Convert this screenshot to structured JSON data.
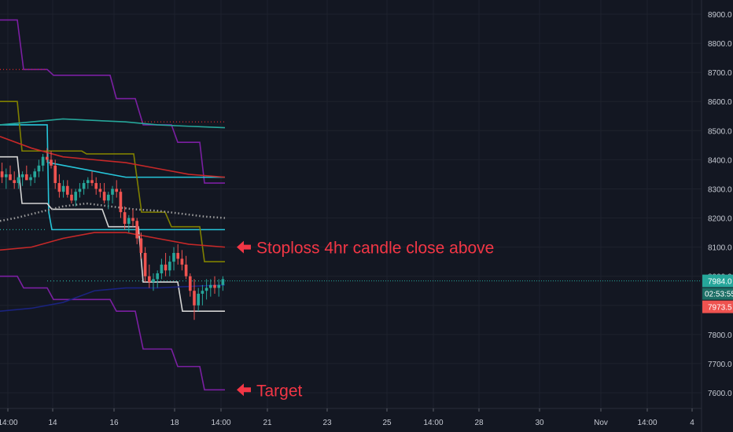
{
  "chart_data": {
    "type": "candlestick",
    "price_axis": {
      "ticks": [
        7600,
        7700,
        7800,
        7900,
        8000,
        8100,
        8200,
        8300,
        8400,
        8500,
        8600,
        8700,
        8800,
        8900
      ],
      "tick_labels": [
        "7600.0",
        "7700.0",
        "7800.0",
        "7900.0",
        "8000.0",
        "8100.0",
        "8200.0",
        "8300.0",
        "8400.0",
        "8500.0",
        "8600.0",
        "8700.0",
        "8800.0",
        "8900.0"
      ],
      "ylim": [
        7535,
        8950
      ]
    },
    "time_axis": {
      "tick_labels": [
        "14:00",
        "14",
        "16",
        "18",
        "14:00",
        "21",
        "23",
        "25",
        "14:00",
        "28",
        "30",
        "Nov",
        "14:00",
        "4"
      ]
    },
    "last_price": {
      "label": "7984.0",
      "value": 7984,
      "color": "#26a69a"
    },
    "countdown": {
      "label": "02:53:55"
    },
    "low_tag": {
      "label": "7973.5",
      "value": 7973.5,
      "color": "#ef5350"
    },
    "candles": [
      [
        8360,
        8390,
        8320,
        8340
      ],
      [
        8340,
        8370,
        8300,
        8350
      ],
      [
        8350,
        8380,
        8330,
        8330
      ],
      [
        8330,
        8360,
        8300,
        8320
      ],
      [
        8320,
        8350,
        8300,
        8340
      ],
      [
        8340,
        8360,
        8310,
        8350
      ],
      [
        8350,
        8380,
        8330,
        8330
      ],
      [
        8330,
        8350,
        8310,
        8340
      ],
      [
        8340,
        8370,
        8320,
        8360
      ],
      [
        8360,
        8400,
        8340,
        8380
      ],
      [
        8380,
        8420,
        8360,
        8410
      ],
      [
        8410,
        8440,
        8390,
        8400
      ],
      [
        8400,
        8430,
        8370,
        8380
      ],
      [
        8380,
        8400,
        8300,
        8320
      ],
      [
        8320,
        8350,
        8270,
        8290
      ],
      [
        8290,
        8330,
        8270,
        8310
      ],
      [
        8310,
        8330,
        8270,
        8280
      ],
      [
        8280,
        8300,
        8250,
        8260
      ],
      [
        8260,
        8300,
        8240,
        8290
      ],
      [
        8290,
        8320,
        8270,
        8300
      ],
      [
        8300,
        8330,
        8280,
        8320
      ],
      [
        8320,
        8340,
        8300,
        8330
      ],
      [
        8330,
        8360,
        8310,
        8320
      ],
      [
        8320,
        8340,
        8280,
        8300
      ],
      [
        8300,
        8320,
        8270,
        8290
      ],
      [
        8290,
        8320,
        8250,
        8260
      ],
      [
        8260,
        8290,
        8230,
        8280
      ],
      [
        8280,
        8310,
        8250,
        8300
      ],
      [
        8300,
        8330,
        8270,
        8290
      ],
      [
        8290,
        8300,
        8200,
        8220
      ],
      [
        8220,
        8240,
        8160,
        8180
      ],
      [
        8180,
        8210,
        8150,
        8200
      ],
      [
        8200,
        8230,
        8170,
        8190
      ],
      [
        8190,
        8200,
        8110,
        8130
      ],
      [
        8130,
        8150,
        8060,
        8080
      ],
      [
        8080,
        8100,
        7980,
        8000
      ],
      [
        8000,
        8040,
        7960,
        7980
      ],
      [
        7980,
        8010,
        7950,
        7990
      ],
      [
        7990,
        8020,
        7960,
        8010
      ],
      [
        8010,
        8060,
        7990,
        8040
      ],
      [
        8040,
        8080,
        8000,
        8020
      ],
      [
        8020,
        8070,
        8000,
        8050
      ],
      [
        8050,
        8100,
        8020,
        8080
      ],
      [
        8080,
        8110,
        8040,
        8060
      ],
      [
        8060,
        8090,
        8020,
        8040
      ],
      [
        8040,
        8070,
        7990,
        8000
      ],
      [
        8000,
        8010,
        7930,
        7950
      ],
      [
        7950,
        7990,
        7850,
        7900
      ],
      [
        7900,
        7960,
        7880,
        7940
      ],
      [
        7940,
        7970,
        7900,
        7950
      ],
      [
        7950,
        7990,
        7920,
        7960
      ],
      [
        7960,
        7990,
        7930,
        7970
      ],
      [
        7970,
        8000,
        7940,
        7960
      ],
      [
        7960,
        7990,
        7930,
        7970
      ],
      [
        7970,
        8000,
        7950,
        7990
      ]
    ],
    "indicator_lines": [
      {
        "color": "#7b1fa2",
        "points": [
          [
            0,
            8880
          ],
          [
            22,
            8880
          ],
          [
            30,
            8710
          ],
          [
            60,
            8710
          ],
          [
            68,
            8690
          ],
          [
            140,
            8690
          ],
          [
            148,
            8610
          ],
          [
            172,
            8610
          ],
          [
            182,
            8520
          ],
          [
            218,
            8520
          ],
          [
            226,
            8460
          ],
          [
            254,
            8460
          ],
          [
            260,
            8320
          ],
          [
            286,
            8320
          ]
        ]
      },
      {
        "color": "#7b1fa2",
        "points": [
          [
            0,
            8000
          ],
          [
            22,
            8000
          ],
          [
            30,
            7960
          ],
          [
            60,
            7960
          ],
          [
            68,
            7920
          ],
          [
            140,
            7920
          ],
          [
            148,
            7880
          ],
          [
            172,
            7880
          ],
          [
            182,
            7750
          ],
          [
            218,
            7750
          ],
          [
            226,
            7690
          ],
          [
            254,
            7690
          ],
          [
            260,
            7610
          ],
          [
            286,
            7610
          ]
        ]
      },
      {
        "color": "#26c6da",
        "points": [
          [
            0,
            8520
          ],
          [
            60,
            8520
          ],
          [
            62,
            8220
          ],
          [
            66,
            8160
          ],
          [
            286,
            8160
          ]
        ]
      },
      {
        "color": "#26c6da",
        "points": [
          [
            62,
            8390
          ],
          [
            160,
            8340
          ],
          [
            286,
            8340
          ]
        ]
      },
      {
        "color": "#808000",
        "points": [
          [
            0,
            8600
          ],
          [
            22,
            8600
          ],
          [
            28,
            8430
          ],
          [
            104,
            8430
          ],
          [
            110,
            8420
          ],
          [
            170,
            8420
          ],
          [
            180,
            8220
          ],
          [
            210,
            8220
          ],
          [
            218,
            8170
          ],
          [
            254,
            8170
          ],
          [
            260,
            8050
          ],
          [
            286,
            8050
          ]
        ]
      },
      {
        "color": "#d4d4d4",
        "points": [
          [
            0,
            8410
          ],
          [
            22,
            8410
          ],
          [
            28,
            8250
          ],
          [
            60,
            8250
          ],
          [
            66,
            8230
          ],
          [
            130,
            8230
          ],
          [
            138,
            8170
          ],
          [
            176,
            8170
          ],
          [
            182,
            7980
          ],
          [
            226,
            7980
          ],
          [
            232,
            7880
          ],
          [
            254,
            7880
          ],
          [
            260,
            7880
          ],
          [
            286,
            7880
          ]
        ]
      },
      {
        "color": "#c62828",
        "points": [
          [
            0,
            8090
          ],
          [
            40,
            8100
          ],
          [
            80,
            8130
          ],
          [
            120,
            8150
          ],
          [
            160,
            8150
          ],
          [
            200,
            8130
          ],
          [
            240,
            8110
          ],
          [
            286,
            8100
          ]
        ]
      },
      {
        "color": "#c62828",
        "points": [
          [
            0,
            8480
          ],
          [
            40,
            8440
          ],
          [
            80,
            8410
          ],
          [
            120,
            8400
          ],
          [
            160,
            8390
          ],
          [
            200,
            8370
          ],
          [
            240,
            8350
          ],
          [
            286,
            8340
          ]
        ]
      },
      {
        "color": "#26a69a",
        "points": [
          [
            0,
            8520
          ],
          [
            40,
            8530
          ],
          [
            80,
            8540
          ],
          [
            120,
            8535
          ],
          [
            160,
            8530
          ],
          [
            200,
            8520
          ],
          [
            240,
            8515
          ],
          [
            286,
            8510
          ]
        ]
      },
      {
        "color": "#1a237e",
        "points": [
          [
            0,
            7880
          ],
          [
            40,
            7890
          ],
          [
            80,
            7910
          ],
          [
            120,
            7950
          ],
          [
            160,
            7960
          ],
          [
            200,
            7960
          ],
          [
            240,
            7965
          ],
          [
            286,
            7970
          ]
        ]
      }
    ],
    "sma_dotted": {
      "color": "#9e9e9e",
      "points": [
        [
          0,
          8190
        ],
        [
          20,
          8200
        ],
        [
          50,
          8220
        ],
        [
          80,
          8240
        ],
        [
          110,
          8250
        ],
        [
          140,
          8240
        ],
        [
          170,
          8230
        ],
        [
          200,
          8225
        ],
        [
          230,
          8215
        ],
        [
          260,
          8205
        ],
        [
          286,
          8200
        ]
      ]
    },
    "dotted_levels": [
      {
        "value": 8710,
        "from": 0,
        "to": 60,
        "color": "#c62828"
      },
      {
        "value": 8160,
        "from": 0,
        "to": 60,
        "color": "#26a69a"
      },
      {
        "value": 8530,
        "from": 180,
        "to": 286,
        "color": "#c62828"
      },
      {
        "value": 7984,
        "from": 60,
        "to": 286,
        "color": "#26a69a"
      }
    ],
    "annotations": [
      {
        "text": "Stoploss 4hr candle close above",
        "value": 8100,
        "color": "#f23645"
      },
      {
        "text": "Target",
        "value": 7610,
        "color": "#f23645"
      }
    ]
  }
}
